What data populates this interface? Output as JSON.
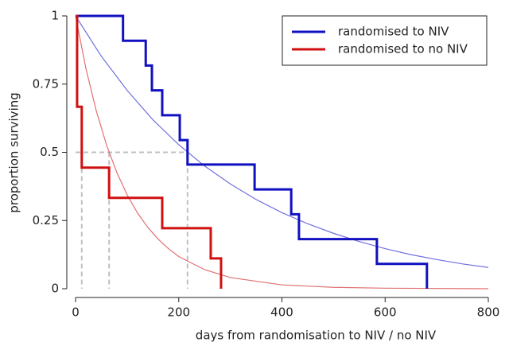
{
  "chart_data": {
    "type": "step",
    "xlabel": "days from randomisation to NIV / no NIV",
    "ylabel": "proportion surviving",
    "xlim": [
      0,
      800
    ],
    "xticks": [
      0,
      200,
      400,
      600,
      800
    ],
    "ylim": [
      0,
      1
    ],
    "yticks": [
      0,
      0.25,
      0.5,
      0.75,
      1
    ],
    "legend": "top-right",
    "series": [
      {
        "name": "randomised to NIV",
        "color": "#1010c0",
        "x": [
          0,
          92,
          136,
          148,
          168,
          202,
          217,
          347,
          418,
          433,
          584,
          681
        ],
        "values": [
          1,
          0.909,
          0.818,
          0.727,
          0.636,
          0.545,
          0.455,
          0.364,
          0.273,
          0.182,
          0.091,
          0
        ]
      },
      {
        "name": "randomised to no NIV",
        "color": "#d01010",
        "x": [
          0,
          3,
          12,
          65,
          168,
          262,
          282
        ],
        "values": [
          1,
          0.667,
          0.444,
          0.333,
          0.222,
          0.111,
          0
        ]
      }
    ],
    "fits": [
      {
        "color": "#7070e0",
        "x": [
          0,
          50,
          100,
          150,
          200,
          250,
          300,
          350,
          400,
          450,
          500,
          550,
          600,
          650,
          700,
          750,
          800
        ],
        "values": [
          1,
          0.852,
          0.727,
          0.619,
          0.528,
          0.45,
          0.384,
          0.327,
          0.279,
          0.238,
          0.203,
          0.173,
          0.147,
          0.125,
          0.107,
          0.091,
          0.078
        ]
      },
      {
        "color": "#e07070",
        "x": [
          0,
          20,
          40,
          60,
          80,
          100,
          120,
          140,
          160,
          180,
          200,
          250,
          300,
          400,
          500,
          600,
          800
        ],
        "values": [
          1,
          0.808,
          0.653,
          0.527,
          0.426,
          0.344,
          0.278,
          0.225,
          0.182,
          0.147,
          0.118,
          0.07,
          0.041,
          0.014,
          0.005,
          0.002,
          0
        ]
      }
    ],
    "reference_lines": {
      "color": "#c0c0c0",
      "y": 0.5,
      "x": [
        12,
        65,
        217
      ]
    }
  }
}
